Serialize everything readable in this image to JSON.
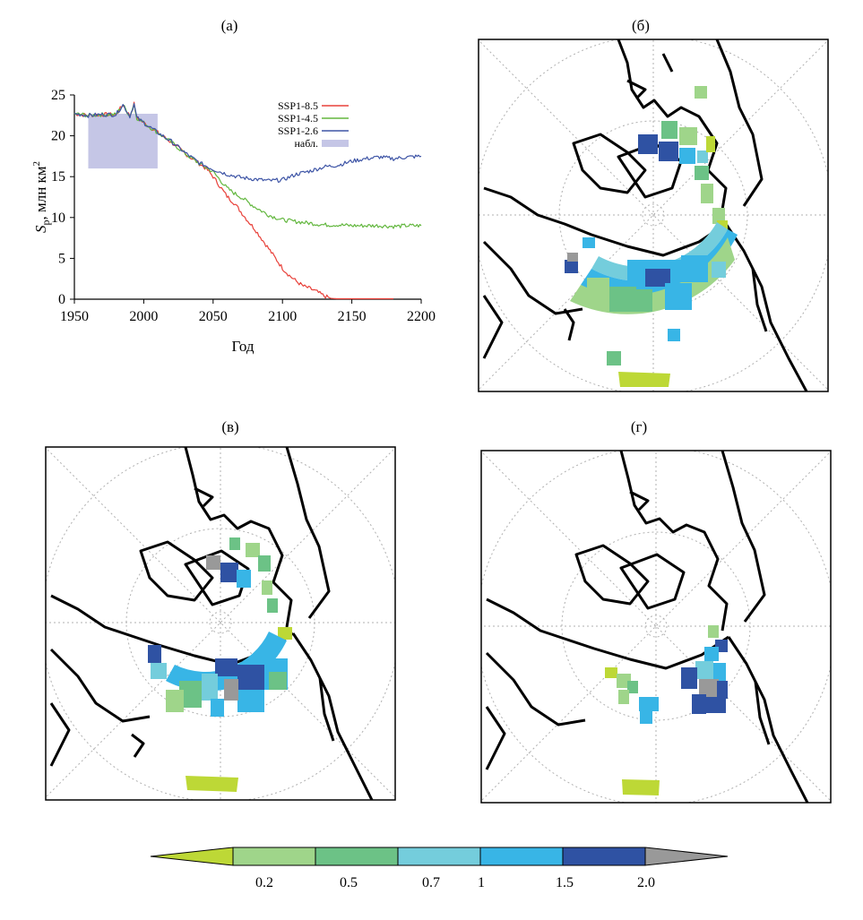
{
  "panels": {
    "a_label": "(а)",
    "b_label": "(б)",
    "v_label": "(в)",
    "g_label": "(г)"
  },
  "chart_data": {
    "type": "line",
    "title": "(а)",
    "xlabel": "Год",
    "ylabel_main": "S",
    "ylabel_sub": "р",
    "ylabel_rest": ", млн км",
    "ylabel_sup": "2",
    "xlim": [
      1950,
      2200
    ],
    "ylim": [
      0,
      25
    ],
    "xticks": [
      "1950",
      "2000",
      "2050",
      "2100",
      "2150",
      "2200"
    ],
    "yticks": [
      "0",
      "5",
      "10",
      "15",
      "20",
      "25"
    ],
    "legend_position": "top-right",
    "observed_band": {
      "name": "набл.",
      "x": [
        1960,
        2010
      ],
      "y": [
        16,
        22.7
      ],
      "color": "#c5c6e6"
    },
    "series": [
      {
        "name": "SSP1-8.5",
        "color": "#e8413a",
        "x": [
          1950,
          1960,
          1970,
          1980,
          1985,
          1990,
          1993,
          1995,
          2000,
          2005,
          2010,
          2020,
          2030,
          2040,
          2045,
          2050,
          2055,
          2060,
          2065,
          2070,
          2075,
          2080,
          2085,
          2090,
          2095,
          2100,
          2105,
          2110,
          2115,
          2120,
          2125,
          2130,
          2135,
          2140,
          2150,
          2160,
          2170,
          2180
        ],
        "y": [
          22.7,
          22.5,
          22.6,
          22.6,
          23.8,
          22.4,
          23.9,
          22.2,
          21.6,
          21.0,
          20.4,
          19.2,
          17.8,
          16.6,
          16.0,
          15.0,
          13.8,
          12.6,
          11.8,
          10.7,
          9.6,
          8.6,
          7.4,
          6.2,
          5.0,
          3.8,
          2.9,
          2.2,
          1.6,
          1.3,
          0.9,
          0.4,
          0.1,
          0.05,
          0.05,
          0.05,
          0.05,
          0.05
        ]
      },
      {
        "name": "SSP1-4.5",
        "color": "#63b73f",
        "x": [
          1950,
          1960,
          1970,
          1980,
          1985,
          1990,
          1993,
          1995,
          2000,
          2005,
          2010,
          2020,
          2030,
          2040,
          2045,
          2050,
          2055,
          2060,
          2065,
          2070,
          2080,
          2090,
          2100,
          2110,
          2120,
          2130,
          2140,
          2150,
          2160,
          2170,
          2180,
          2190,
          2200
        ],
        "y": [
          22.7,
          22.5,
          22.6,
          22.6,
          23.8,
          22.4,
          23.9,
          22.2,
          21.6,
          21.0,
          20.4,
          19.2,
          17.8,
          16.6,
          16.1,
          15.6,
          14.6,
          13.6,
          13.0,
          12.5,
          11.3,
          10.3,
          9.7,
          9.5,
          9.3,
          9.1,
          9.1,
          9.0,
          9.0,
          9.0,
          8.9,
          9.0,
          9.0
        ]
      },
      {
        "name": "SSP1-2.6",
        "color": "#3e55a6",
        "x": [
          1950,
          1960,
          1970,
          1980,
          1985,
          1990,
          1993,
          1995,
          2000,
          2005,
          2010,
          2020,
          2030,
          2040,
          2050,
          2060,
          2070,
          2080,
          2090,
          2100,
          2110,
          2120,
          2130,
          2140,
          2150,
          2160,
          2170,
          2180,
          2190,
          2200
        ],
        "y": [
          22.7,
          22.5,
          22.6,
          22.6,
          23.8,
          22.4,
          23.9,
          22.2,
          21.6,
          21.0,
          20.4,
          19.3,
          17.9,
          16.7,
          15.9,
          15.3,
          14.9,
          14.7,
          14.5,
          14.6,
          15.3,
          15.7,
          16.2,
          16.4,
          16.9,
          17.2,
          17.4,
          17.2,
          17.4,
          17.5
        ]
      }
    ],
    "legend": [
      "SSP1-8.5",
      "SSP1-4.5",
      "SSP1-2.6",
      "набл."
    ]
  },
  "colorbar": {
    "ticks": [
      "0.2",
      "0.5",
      "0.7",
      "1",
      "1.5",
      "2.0"
    ],
    "colors": [
      "#bdd836",
      "#9fd58a",
      "#6cc286",
      "#74cddc",
      "#38b5e6",
      "#2f52a3",
      "#999999"
    ]
  }
}
